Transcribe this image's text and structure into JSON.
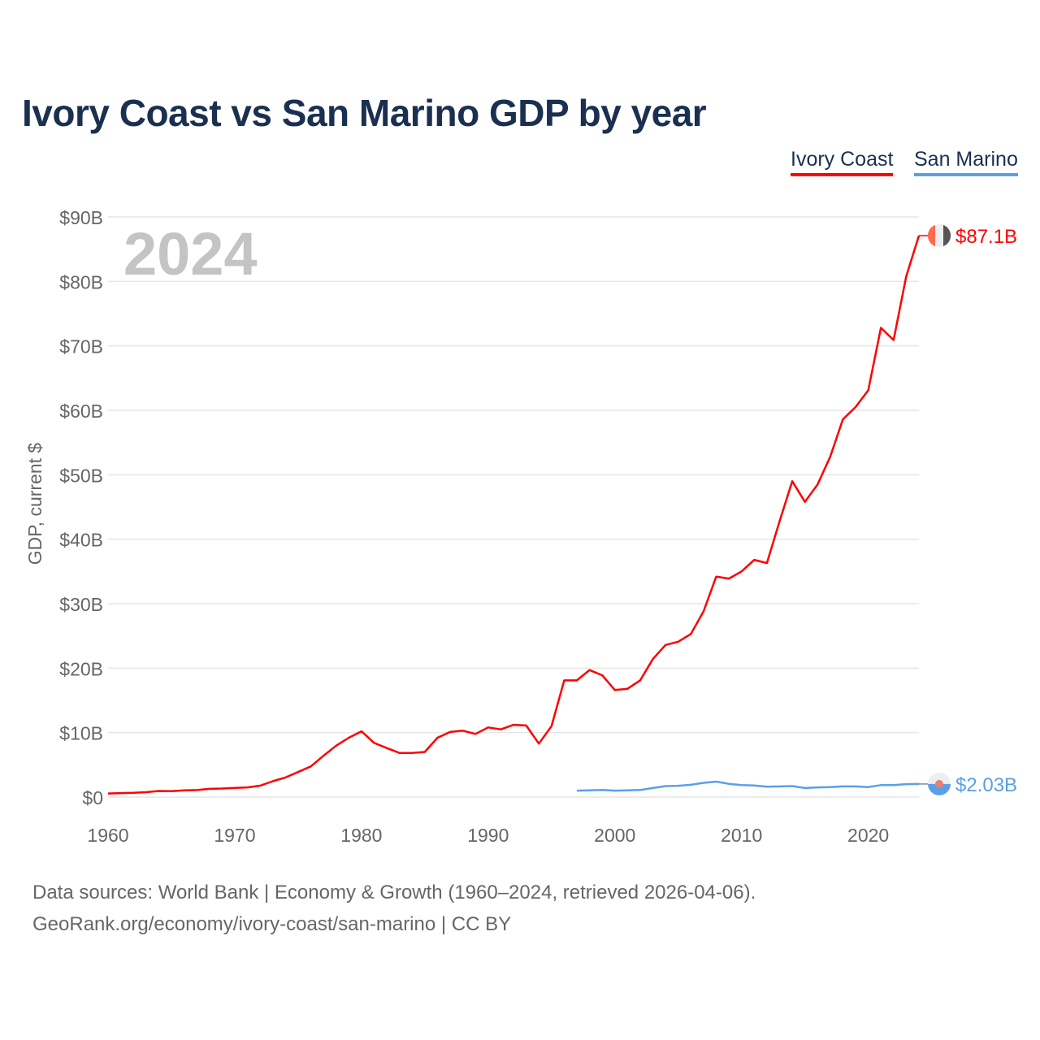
{
  "chart_data": {
    "type": "line",
    "title": "Ivory Coast vs San Marino GDP by year",
    "ylabel": "GDP, current $",
    "xlabel": "",
    "xlim": [
      1960,
      2024
    ],
    "ylim": [
      0,
      90
    ],
    "year_watermark": "2024",
    "x_ticks": [
      "1960",
      "1970",
      "1980",
      "1990",
      "2000",
      "2010",
      "2020"
    ],
    "y_ticks": [
      "$0",
      "$10B",
      "$20B",
      "$30B",
      "$40B",
      "$50B",
      "$60B",
      "$70B",
      "$80B",
      "$90B"
    ],
    "grid": true,
    "legend_position": "top-right",
    "series": [
      {
        "name": "Ivory Coast",
        "color": "#ff0000",
        "end_label": "$87.1B",
        "start_year": 1960,
        "values": [
          0.55,
          0.62,
          0.65,
          0.76,
          0.95,
          0.92,
          1.03,
          1.08,
          1.27,
          1.32,
          1.42,
          1.5,
          1.76,
          2.46,
          3.04,
          3.88,
          4.75,
          6.4,
          7.97,
          9.2,
          10.2,
          8.4,
          7.6,
          6.84,
          6.85,
          7.0,
          9.2,
          10.1,
          10.3,
          9.8,
          10.8,
          10.5,
          11.2,
          11.1,
          8.3,
          11.0,
          18.1,
          18.1,
          19.7,
          18.9,
          16.6,
          16.8,
          18.1,
          21.4,
          23.6,
          24.1,
          25.3,
          28.8,
          34.2,
          33.9,
          35.0,
          36.8,
          36.3,
          42.8,
          49.0,
          45.8,
          48.5,
          52.8,
          58.6,
          60.5,
          63.1,
          72.8,
          70.9,
          80.8,
          87.1
        ]
      },
      {
        "name": "San Marino",
        "color": "#5aa0e8",
        "end_label": "$2.03B",
        "start_year": 1997,
        "values": [
          1.0,
          1.05,
          1.1,
          1.0,
          1.05,
          1.1,
          1.4,
          1.7,
          1.75,
          1.9,
          2.2,
          2.4,
          2.05,
          1.85,
          1.8,
          1.6,
          1.65,
          1.7,
          1.4,
          1.5,
          1.55,
          1.65,
          1.65,
          1.55,
          1.85,
          1.85,
          2.0,
          2.03
        ]
      }
    ]
  },
  "footer": {
    "line1": "Data sources: World Bank | Economy & Growth (1960–2024, retrieved 2026-04-06).",
    "line2": "GeoRank.org/economy/ivory-coast/san-marino | CC BY"
  }
}
